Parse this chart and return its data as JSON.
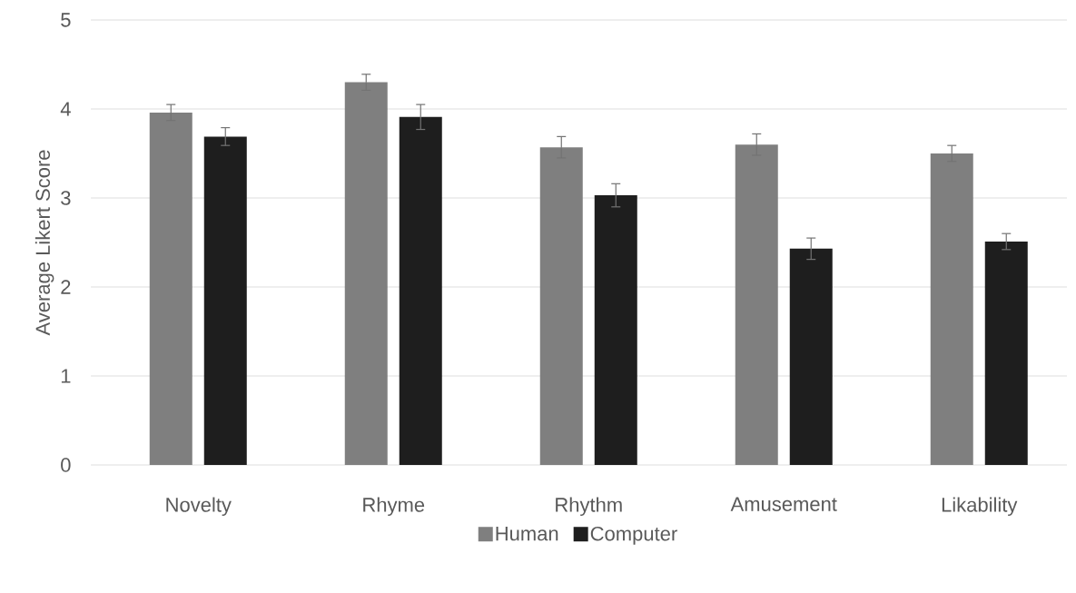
{
  "chart_data": {
    "type": "bar",
    "ylabel": "Average Likert Score",
    "categories": [
      "Novelty",
      "Rhyme",
      "Rhythm",
      "Amusement",
      "Likability"
    ],
    "series": [
      {
        "name": "Human",
        "color": "#7f7f7f",
        "values": [
          3.96,
          4.3,
          3.57,
          3.6,
          3.5
        ],
        "errors": [
          0.09,
          0.09,
          0.12,
          0.12,
          0.09
        ]
      },
      {
        "name": "Computer",
        "color": "#1e1e1e",
        "values": [
          3.69,
          3.91,
          3.03,
          2.43,
          2.51
        ],
        "errors": [
          0.1,
          0.14,
          0.13,
          0.12,
          0.09
        ]
      }
    ],
    "ylim": [
      0,
      5
    ],
    "yticks": [
      0,
      1,
      2,
      3,
      4,
      5
    ],
    "grid": "y",
    "legend": "bottom"
  }
}
